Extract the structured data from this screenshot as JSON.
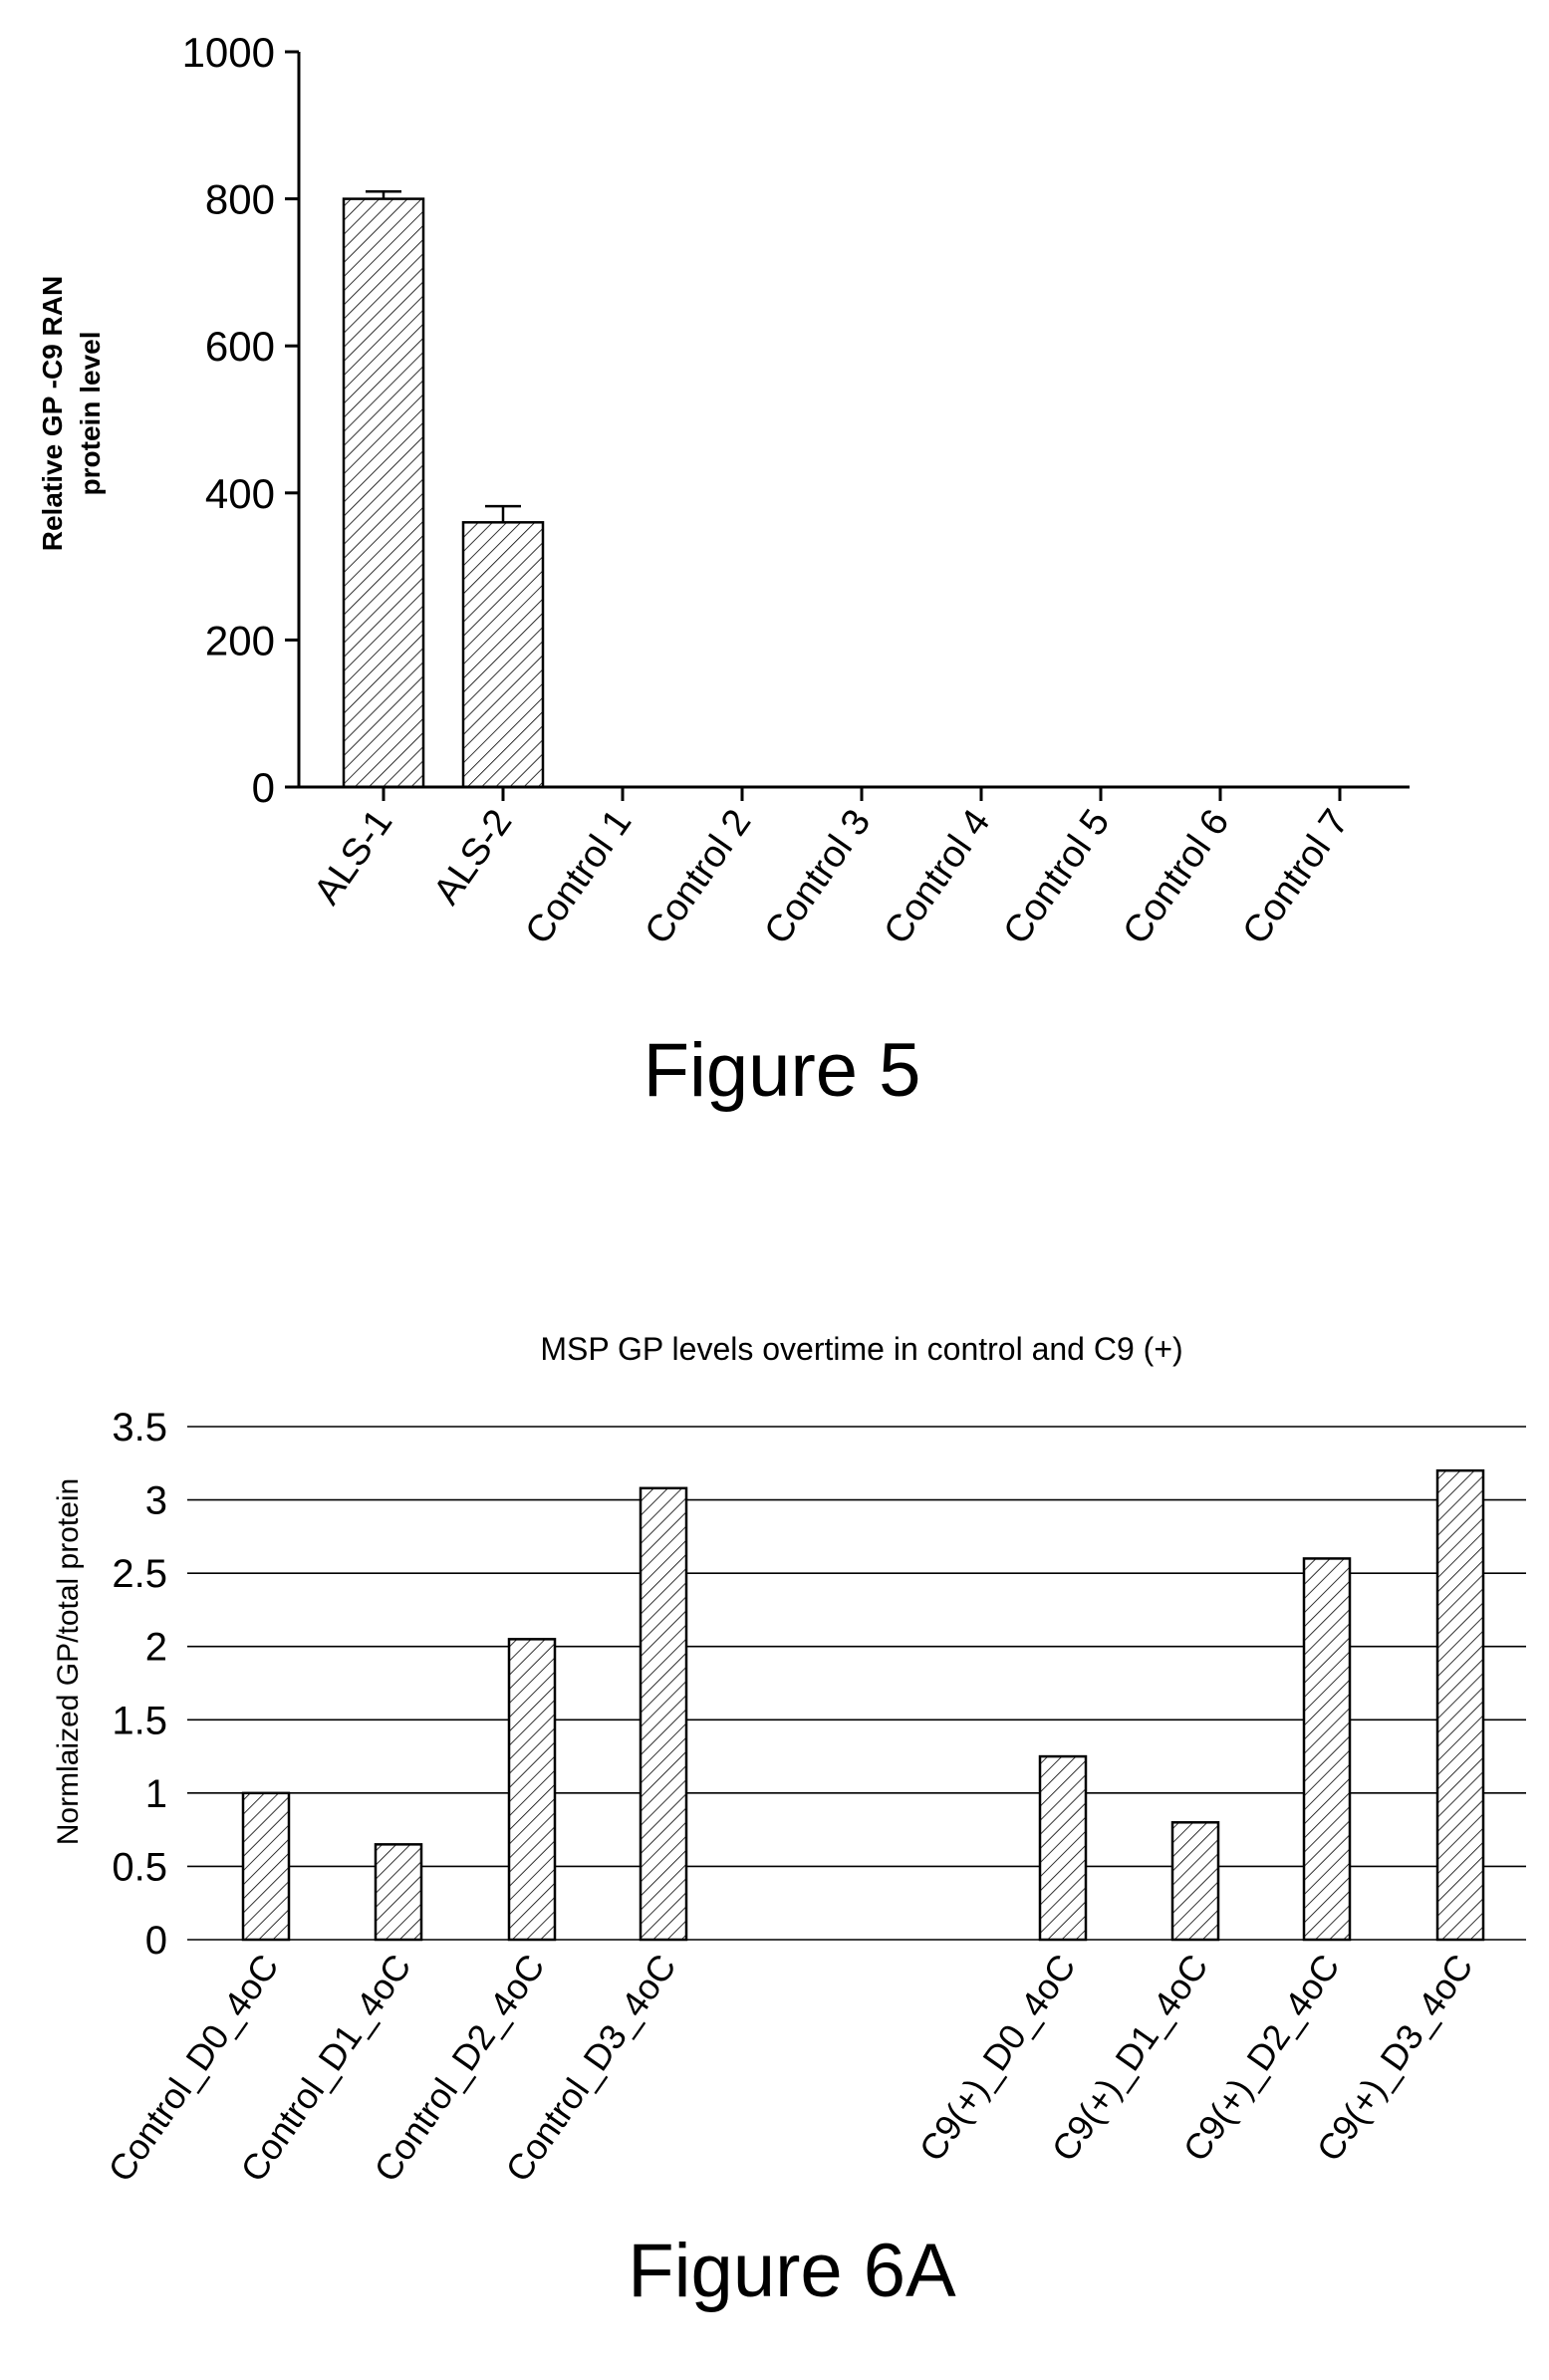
{
  "chart_data": [
    {
      "type": "bar",
      "caption": "Figure 5",
      "ylabel": "Relative GP -C9 RAN protein level",
      "ylabel_lines": [
        "Relative GP -C9 RAN",
        "protein level"
      ],
      "ylim": [
        0,
        1000
      ],
      "yticks": [
        0,
        200,
        400,
        600,
        800,
        1000
      ],
      "ytick_labels": [
        "0",
        "200",
        "400",
        "600",
        "800",
        "1000"
      ],
      "categories": [
        "ALS-1",
        "ALS-2",
        "Control 1",
        "Control 2",
        "Control 3",
        "Control 4",
        "Control 5",
        "Control 6",
        "Control 7"
      ],
      "values": [
        800,
        360,
        0,
        0,
        0,
        0,
        0,
        0,
        0
      ],
      "errors": [
        10,
        22,
        0,
        0,
        0,
        0,
        0,
        0,
        0
      ],
      "grid": false
    },
    {
      "type": "bar",
      "caption": "Figure 6A",
      "title": "MSP GP levels overtime in control and C9 (+)",
      "ylabel": "Normlaized GP/total protein",
      "ylim": [
        0,
        3.5
      ],
      "yticks": [
        0,
        0.5,
        1,
        1.5,
        2,
        2.5,
        3,
        3.5
      ],
      "ytick_labels": [
        "0",
        "0.5",
        "1",
        "1.5",
        "2",
        "2.5",
        "3",
        "3.5"
      ],
      "categories": [
        "Control_D0_4oC",
        "Control_D1_4oC",
        "Control_D2_4oC",
        "Control_D3_4oC",
        "C9(+)_D0_4oC",
        "C9(+)_D1_4oC",
        "C9(+)_D2_4oC",
        "C9(+)_D3_4oC"
      ],
      "values": [
        1.0,
        0.65,
        2.05,
        3.08,
        1.25,
        0.8,
        2.6,
        3.2
      ],
      "grid": true
    }
  ]
}
